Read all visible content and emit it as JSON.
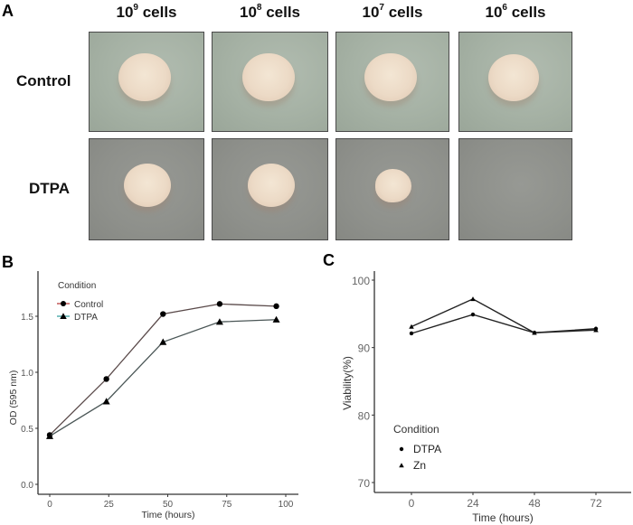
{
  "figure": {
    "panel_a": {
      "letter": "A",
      "columns": [
        {
          "base": "10",
          "exp": "9",
          "suffix": " cells"
        },
        {
          "base": "10",
          "exp": "8",
          "suffix": " cells"
        },
        {
          "base": "10",
          "exp": "7",
          "suffix": " cells"
        },
        {
          "base": "10",
          "exp": "6",
          "suffix": " cells"
        }
      ],
      "rows": [
        {
          "label": "Control",
          "growth": [
            "large",
            "large",
            "large",
            "large"
          ]
        },
        {
          "label": "DTPA",
          "growth": [
            "large",
            "large",
            "small",
            "none"
          ]
        }
      ],
      "colors": {
        "control_bg": "#a7b3a6",
        "dtpa_bg": "#8f918c",
        "colony": "#ecdac6"
      }
    },
    "panel_b": {
      "letter": "B"
    },
    "panel_c": {
      "letter": "C"
    }
  },
  "chart_data": [
    {
      "panel": "B",
      "type": "line",
      "title": "",
      "xlabel": "Time (hours)",
      "ylabel": "OD (595 nm)",
      "x_ticks": [
        "0",
        "25",
        "50",
        "75",
        "100"
      ],
      "y_ticks": [
        "0.0",
        "0.5",
        "1.0",
        "1.5"
      ],
      "xlim": [
        -5,
        105
      ],
      "ylim": [
        -0.08,
        1.85
      ],
      "grid": false,
      "legend": {
        "title": "Condition",
        "position": "top-left inside",
        "entries": [
          "Control",
          "DTPA"
        ]
      },
      "x": [
        0,
        24,
        48,
        72,
        96
      ],
      "series": [
        {
          "name": "Control",
          "marker": "circle",
          "color": "#5a4a4a",
          "values": [
            0.44,
            0.94,
            1.52,
            1.61,
            1.59
          ]
        },
        {
          "name": "DTPA",
          "marker": "triangle",
          "color": "#4a5656",
          "values": [
            0.43,
            0.74,
            1.27,
            1.45,
            1.47
          ]
        }
      ]
    },
    {
      "panel": "C",
      "type": "line",
      "title": "",
      "xlabel": "Time (hours)",
      "ylabel": "Viability(%)",
      "x_ticks": [
        "0",
        "24",
        "48",
        "72"
      ],
      "y_ticks": [
        "70",
        "80",
        "90",
        "100"
      ],
      "xlim": [
        -12,
        84
      ],
      "ylim": [
        69.5,
        101.5
      ],
      "grid": false,
      "legend": {
        "title": "Condition",
        "position": "bottom-left inside",
        "entries": [
          "DTPA",
          "Zn"
        ]
      },
      "x": [
        0,
        24,
        48,
        72
      ],
      "series": [
        {
          "name": "DTPA",
          "marker": "circle",
          "color": "#222222",
          "values": [
            92.1,
            94.9,
            92.2,
            92.8
          ]
        },
        {
          "name": "Zn",
          "marker": "triangle",
          "color": "#222222",
          "values": [
            93.1,
            97.2,
            92.2,
            92.6
          ]
        }
      ]
    }
  ]
}
